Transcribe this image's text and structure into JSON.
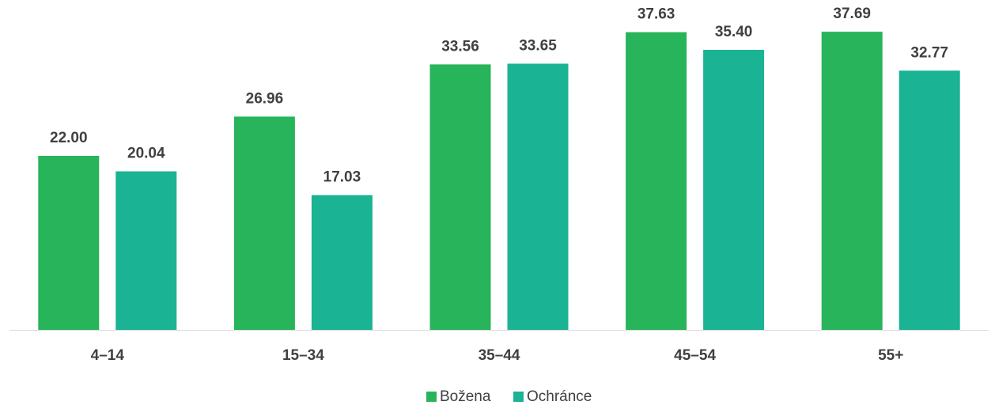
{
  "chart_data": {
    "type": "bar",
    "categories": [
      "4–14",
      "15–34",
      "35–44",
      "45–54",
      "55+"
    ],
    "series": [
      {
        "name": "Božena",
        "values": [
          22.0,
          26.96,
          33.56,
          37.63,
          37.69
        ],
        "color": "#27b45a"
      },
      {
        "name": "Ochránce",
        "values": [
          20.04,
          17.03,
          33.65,
          35.4,
          32.77
        ],
        "color": "#1ab394"
      }
    ],
    "ylim": [
      0,
      40
    ],
    "grid": false,
    "legend_position": "bottom",
    "data_labels_decimals": 2,
    "axis_color": "#d9d9d9",
    "text_color": "#404040"
  }
}
